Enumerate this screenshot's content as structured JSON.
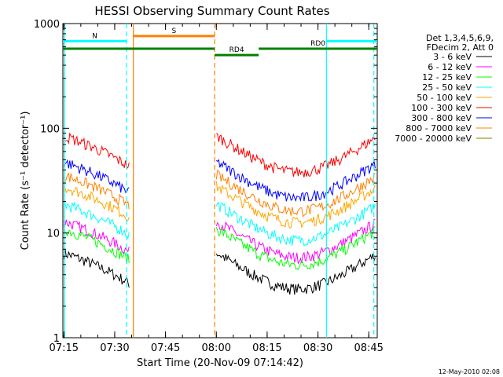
{
  "chart_data": {
    "type": "line",
    "title": "HESSI Observing Summary Count Rates",
    "xlabel": "Start Time (20-Nov-09 07:14:42)",
    "ylabel": "Count Rate (s⁻¹ detector⁻¹)",
    "x_ticks": [
      "07:15",
      "07:30",
      "07:45",
      "08:00",
      "08:15",
      "08:30",
      "08:45"
    ],
    "x_tick_minutes": [
      15,
      30,
      45,
      60,
      75,
      90,
      105
    ],
    "xlim_minutes": [
      14.7,
      107.5
    ],
    "y_scale": "log",
    "ylim": [
      1,
      1000
    ],
    "y_ticks": [
      "1",
      "10",
      "100",
      "1000"
    ],
    "y_tick_values": [
      1,
      10,
      100,
      1000
    ],
    "legend_header": [
      "Det 1,3,4,5,6,9,",
      "FDecim 2, Att 0"
    ],
    "legend_position": "right",
    "footer_date": "12-May-2010 02:08",
    "series": [
      {
        "name": "3 - 6 keV",
        "color": "#000000",
        "base": 6.5
      },
      {
        "name": "6 - 12 keV",
        "color": "#ff00ff",
        "base": 13
      },
      {
        "name": "12 - 25 keV",
        "color": "#00ff00",
        "base": 11
      },
      {
        "name": "25 - 50 keV",
        "color": "#00ffff",
        "base": 19
      },
      {
        "name": "50 - 100 keV",
        "color": "#ffa500",
        "base": 28
      },
      {
        "name": "100 - 300 keV",
        "color": "#ff0000",
        "base": 85
      },
      {
        "name": "300 - 800 keV",
        "color": "#0000ff",
        "base": 48
      },
      {
        "name": "800 - 7000 keV",
        "color": "#ff8000",
        "base": 36
      },
      {
        "name": "7000 - 20000 keV",
        "color": "#808000",
        "base": 0
      }
    ],
    "data_gaps_minutes": [
      [
        34.5,
        59.5
      ]
    ],
    "state_bars": [
      {
        "label": "S",
        "color": "#ff8000",
        "start": 35.5,
        "end": 59.5,
        "level": 760
      },
      {
        "label": "N",
        "color": "#00ffff",
        "start": 14.7,
        "end": 33.5,
        "level": 680
      },
      {
        "label": "",
        "color": "#00ffff",
        "start": 92.5,
        "end": 107.5,
        "level": 680
      },
      {
        "label": "",
        "color": "#008000",
        "start": 14.7,
        "end": 59.5,
        "level": 575
      },
      {
        "label": "RD4",
        "color": "#008000",
        "start": 59.5,
        "end": 72.5,
        "level": 500
      },
      {
        "label": "RD0",
        "color": "#008000",
        "start": 72.5,
        "end": 107.5,
        "level": 575
      }
    ],
    "vertical_lines": [
      {
        "minute": 33.5,
        "color": "#00ffff",
        "style": "dashed"
      },
      {
        "minute": 35.5,
        "color": "#ff8000",
        "style": "solid"
      },
      {
        "minute": 59.5,
        "color": "#ff8000",
        "style": "dashed"
      },
      {
        "minute": 92.5,
        "color": "#00ffff",
        "style": "solid"
      },
      {
        "minute": 106.5,
        "color": "#00ffff",
        "style": "dashed"
      },
      {
        "minute": 15.2,
        "color": "#00ffff",
        "style": "solid"
      }
    ]
  }
}
